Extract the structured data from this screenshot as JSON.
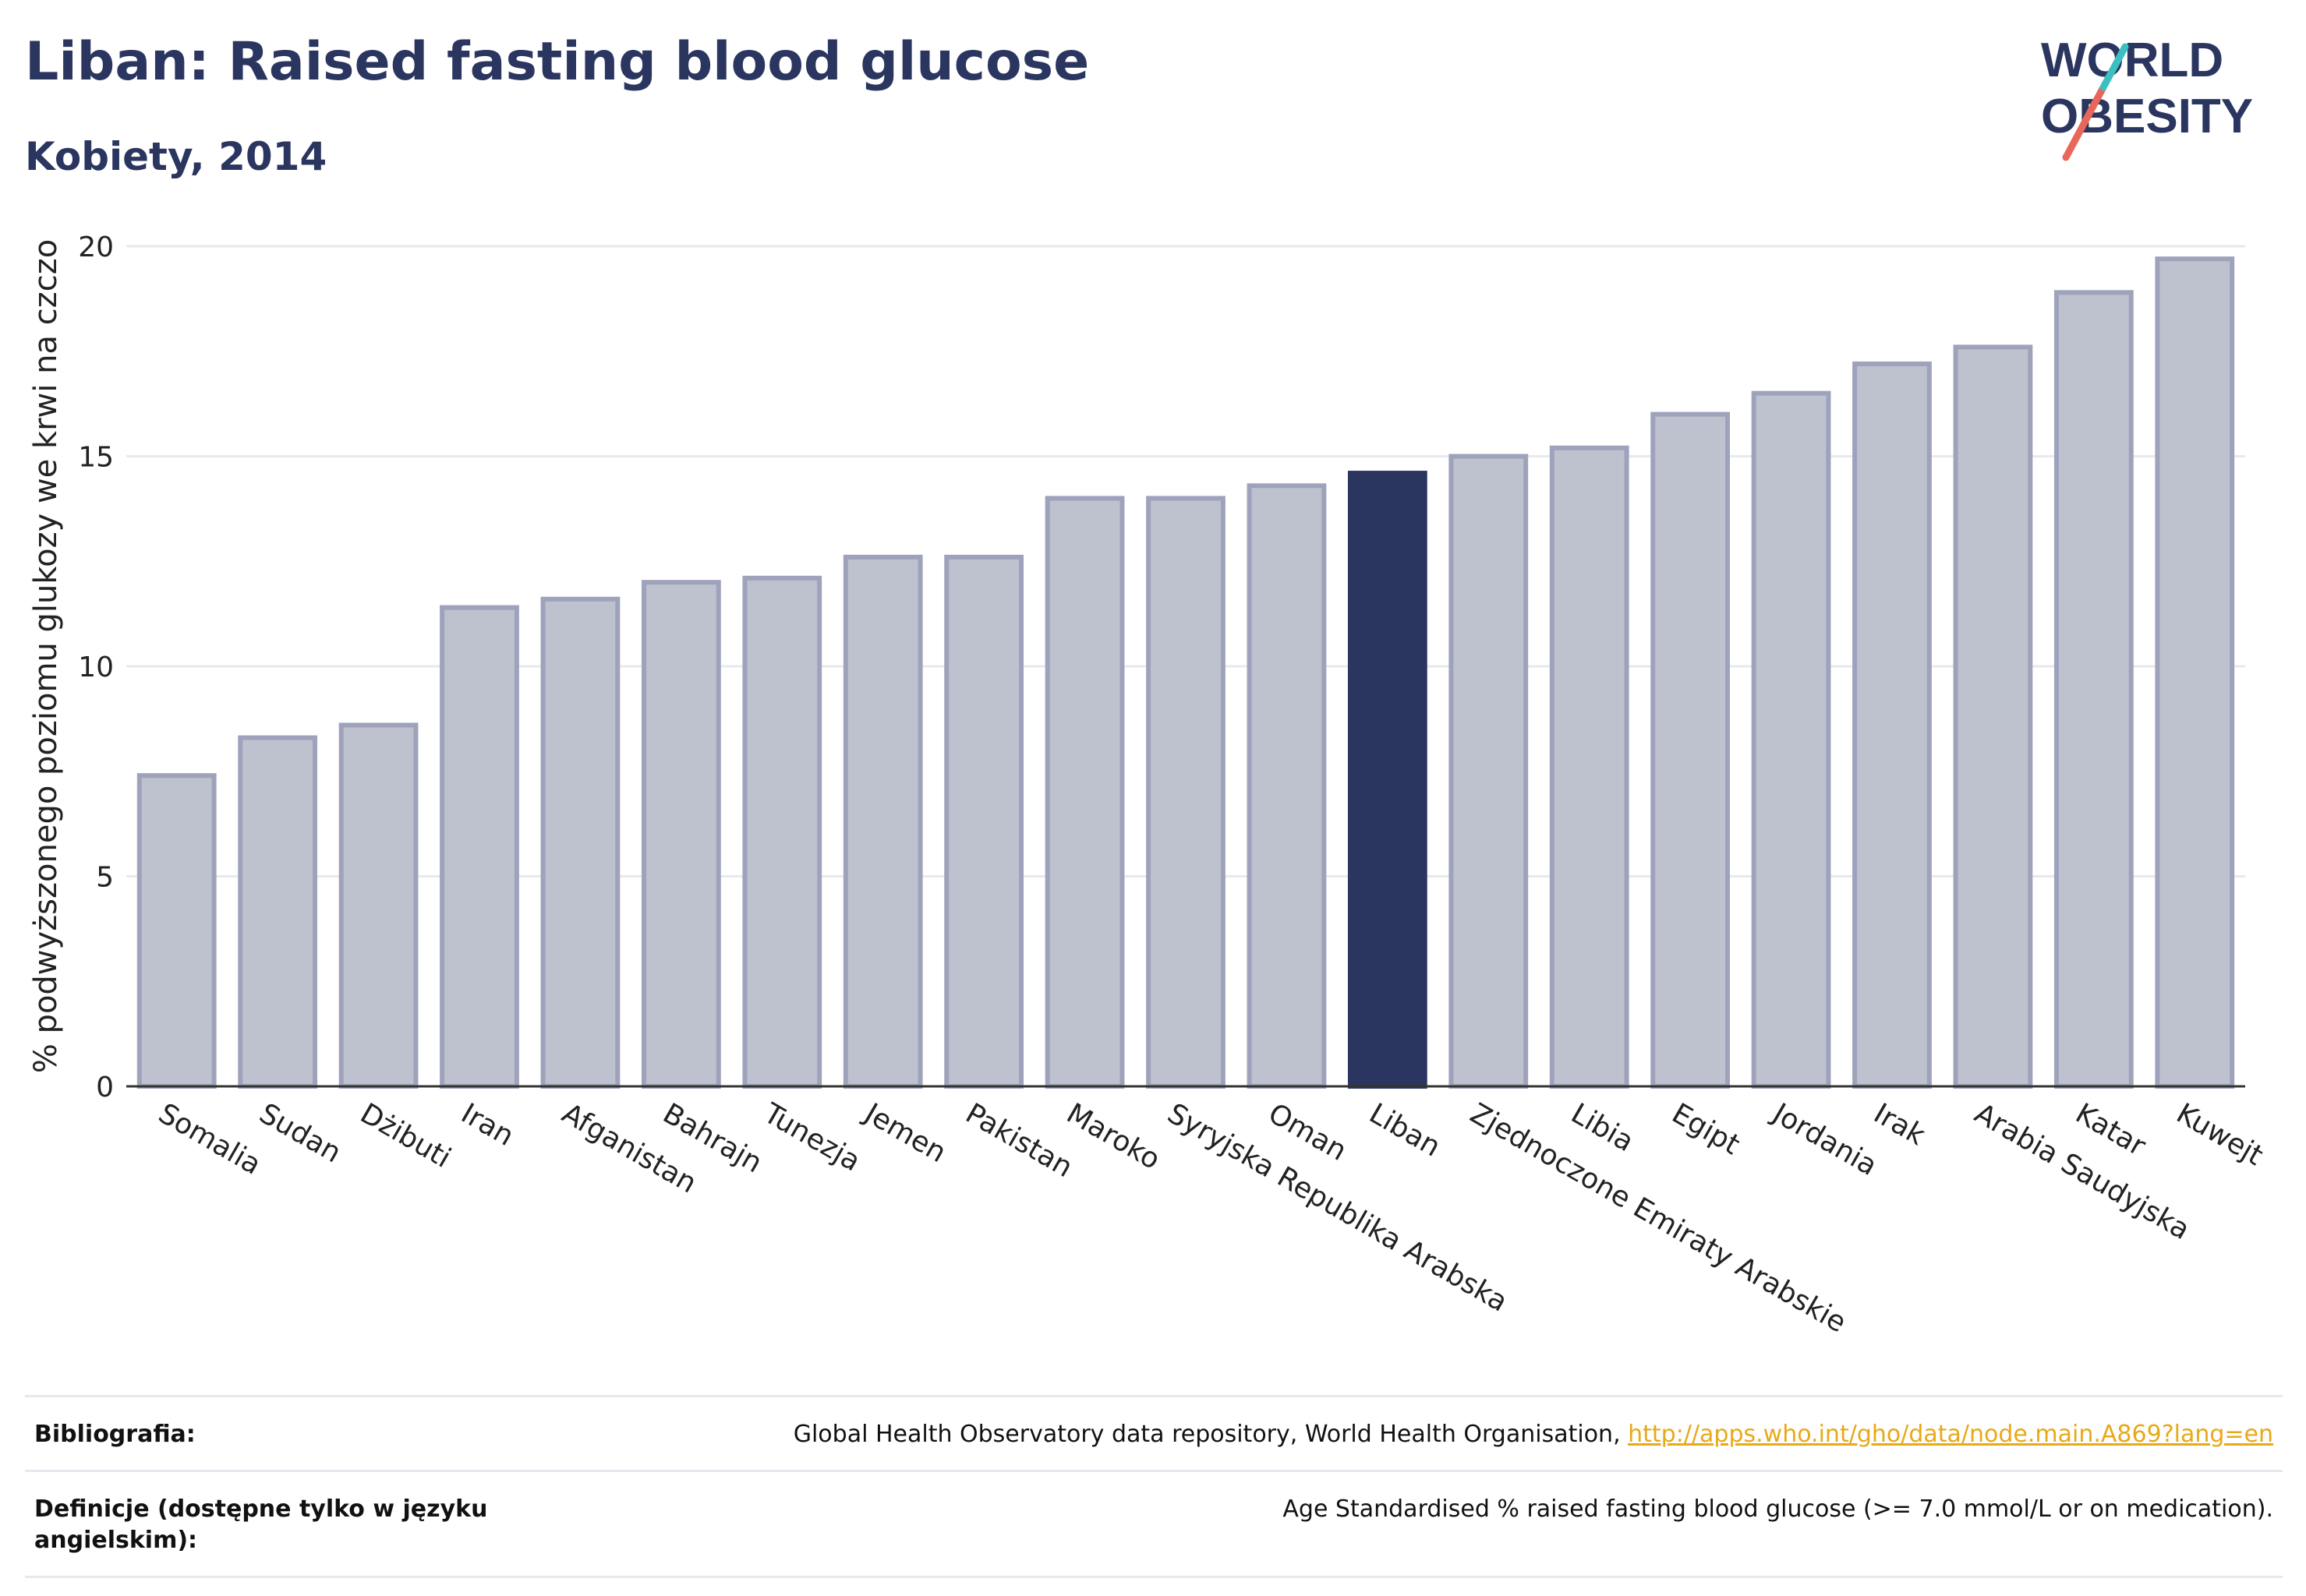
{
  "header": {
    "title": "Liban: Raised fasting blood glucose",
    "subtitle": "Kobiety, 2014"
  },
  "logo": {
    "line1": "WORLD",
    "line2": "OBESITY",
    "text_color": "#2b3660",
    "slash_colors": [
      "#e8675a",
      "#3cbfc0"
    ]
  },
  "chart_data": {
    "type": "bar",
    "categories": [
      "Somalia",
      "Sudan",
      "Dżibuti",
      "Iran",
      "Afganistan",
      "Bahrajn",
      "Tunezja",
      "Jemen",
      "Pakistan",
      "Maroko",
      "Syryjska Republika Arabska",
      "Oman",
      "Liban",
      "Zjednoczone Emiraty Arabskie",
      "Libia",
      "Egipt",
      "Jordania",
      "Irak",
      "Arabia Saudyjska",
      "Katar",
      "Kuwejt"
    ],
    "values": [
      7.4,
      8.3,
      8.6,
      11.4,
      11.6,
      12.0,
      12.1,
      12.6,
      12.6,
      14.0,
      14.0,
      14.3,
      14.6,
      15.0,
      15.2,
      16.0,
      16.5,
      17.2,
      17.6,
      18.9,
      19.7
    ],
    "highlight": "Liban",
    "title": "",
    "xlabel": "",
    "ylabel": "% podwyższonego poziomu glukozy we krwi na czczo",
    "ylim": [
      0,
      20
    ],
    "yticks": [
      0,
      5,
      10,
      15,
      20
    ],
    "grid": true,
    "colors": {
      "bar": "#bec1ce",
      "bar_edge": "#9ea3bb",
      "highlight": "#2b3660"
    }
  },
  "footer": {
    "bibliography_label": "Bibliografia:",
    "bibliography_text": "Global Health Observatory data repository, World Health Organisation, ",
    "bibliography_link": "http://apps.who.int/gho/data/node.main.A869?lang=en",
    "definitions_label": "Definicje (dostępne tylko w języku angielskim):",
    "definitions_text": "Age Standardised % raised fasting blood glucose (>= 7.0 mmol/L or on medication)."
  }
}
